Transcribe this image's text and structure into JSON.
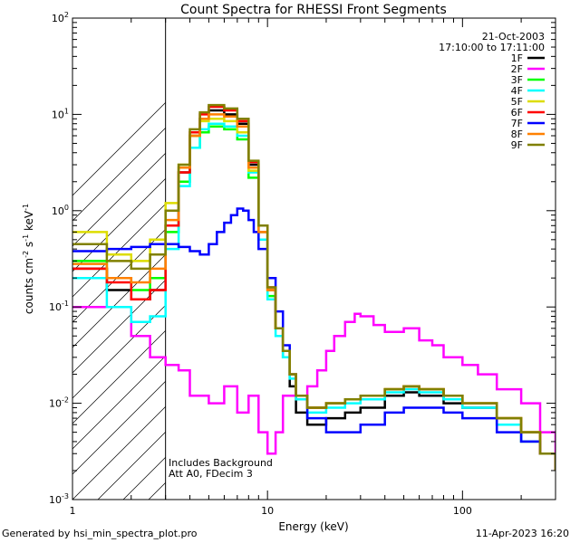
{
  "chart_data": {
    "type": "line",
    "title": "Count Spectra for RHESSI Front Segments",
    "xlabel": "Energy (keV)",
    "ylabel_parts": [
      "counts cm",
      "-2",
      " s",
      "-1",
      " keV",
      "-1"
    ],
    "xscale": "log",
    "yscale": "log",
    "xlim": [
      1,
      300
    ],
    "ylim": [
      0.001,
      100
    ],
    "x_ticks": [
      {
        "v": 1,
        "label": "1"
      },
      {
        "v": 10,
        "label": "10"
      },
      {
        "v": 100,
        "label": "100"
      }
    ],
    "y_ticks": [
      {
        "v": 0.001,
        "b": "10",
        "e": "-3"
      },
      {
        "v": 0.01,
        "b": "10",
        "e": "-2"
      },
      {
        "v": 0.1,
        "b": "10",
        "e": "-1"
      },
      {
        "v": 1,
        "b": "10",
        "e": "0"
      },
      {
        "v": 10,
        "b": "10",
        "e": "1"
      },
      {
        "v": 100,
        "b": "10",
        "e": "2"
      }
    ],
    "hatched_region_x": [
      1,
      3
    ],
    "date": "21-Oct-2003",
    "time_range": "17:10:00 to 17:11:00",
    "legend_position": "top-right",
    "annotations": [
      "Includes Background",
      "Att A0, FDecim 3"
    ],
    "series": [
      {
        "name": "1F",
        "color": "#000000",
        "x": [
          1,
          1.5,
          2,
          2.5,
          3,
          3.5,
          4,
          4.5,
          5,
          5.5,
          6,
          7,
          8,
          9,
          10,
          11,
          12,
          13,
          14,
          16,
          20,
          25,
          30,
          40,
          50,
          60,
          80,
          100,
          150,
          200,
          250,
          300
        ],
        "y": [
          0.25,
          0.15,
          0.12,
          0.15,
          0.7,
          2.5,
          6,
          9,
          11,
          11,
          10,
          8,
          3,
          0.6,
          0.15,
          0.06,
          0.03,
          0.015,
          0.008,
          0.006,
          0.007,
          0.008,
          0.009,
          0.012,
          0.013,
          0.012,
          0.01,
          0.009,
          0.006,
          0.004,
          0.003,
          0.002
        ]
      },
      {
        "name": "2F",
        "color": "#ff00ff",
        "x": [
          1,
          1.5,
          2,
          2.5,
          3,
          3.5,
          4,
          5,
          6,
          7,
          8,
          9,
          10,
          11,
          12,
          14,
          16,
          18,
          20,
          22,
          25,
          28,
          30,
          35,
          40,
          50,
          60,
          70,
          80,
          100,
          120,
          150,
          200,
          250,
          300
        ],
        "y": [
          0.1,
          0.1,
          0.05,
          0.03,
          0.025,
          0.022,
          0.012,
          0.01,
          0.015,
          0.008,
          0.012,
          0.005,
          0.003,
          0.005,
          0.012,
          0.012,
          0.015,
          0.022,
          0.035,
          0.05,
          0.07,
          0.085,
          0.08,
          0.065,
          0.055,
          0.06,
          0.045,
          0.04,
          0.03,
          0.025,
          0.02,
          0.014,
          0.01,
          0.005,
          0.003
        ]
      },
      {
        "name": "3F",
        "color": "#00ff00",
        "x": [
          1,
          1.5,
          2,
          2.5,
          3,
          3.5,
          4,
          4.5,
          5,
          5.5,
          6,
          7,
          8,
          9,
          10,
          11,
          12,
          13,
          14,
          16,
          20,
          25,
          30,
          40,
          50,
          60,
          80,
          100,
          150,
          200,
          250,
          300
        ],
        "y": [
          0.3,
          0.2,
          0.15,
          0.2,
          0.6,
          2,
          4.5,
          6.5,
          7.5,
          7.5,
          7,
          5.5,
          2.2,
          0.5,
          0.13,
          0.06,
          0.035,
          0.02,
          0.012,
          0.009,
          0.01,
          0.011,
          0.012,
          0.014,
          0.015,
          0.014,
          0.012,
          0.01,
          0.007,
          0.005,
          0.003,
          0.002
        ]
      },
      {
        "name": "4F",
        "color": "#00ffff",
        "x": [
          1,
          1.5,
          2,
          2.5,
          3,
          3.5,
          4,
          4.5,
          5,
          5.5,
          6,
          7,
          8,
          9,
          10,
          11,
          12,
          13,
          14,
          16,
          20,
          25,
          30,
          40,
          50,
          60,
          80,
          100,
          150,
          200,
          250,
          300
        ],
        "y": [
          0.2,
          0.1,
          0.07,
          0.08,
          0.4,
          1.8,
          4.5,
          7,
          8,
          8,
          7.5,
          6,
          2.5,
          0.5,
          0.12,
          0.05,
          0.03,
          0.018,
          0.011,
          0.008,
          0.009,
          0.01,
          0.011,
          0.013,
          0.014,
          0.013,
          0.011,
          0.009,
          0.006,
          0.004,
          0.003,
          0.002
        ]
      },
      {
        "name": "5F",
        "color": "#dddd00",
        "x": [
          1,
          1.5,
          2,
          2.5,
          3,
          3.5,
          4,
          4.5,
          5,
          5.5,
          6,
          7,
          8,
          9,
          10,
          11,
          12,
          13,
          14,
          16,
          20,
          25,
          30,
          40,
          50,
          60,
          80,
          100,
          150,
          200,
          250,
          300
        ],
        "y": [
          0.6,
          0.35,
          0.3,
          0.5,
          1.2,
          3,
          6,
          8.5,
          9,
          9,
          8.5,
          6.5,
          2.6,
          0.6,
          0.15,
          0.06,
          0.035,
          0.02,
          0.012,
          0.009,
          0.01,
          0.011,
          0.012,
          0.014,
          0.015,
          0.014,
          0.012,
          0.01,
          0.007,
          0.005,
          0.003,
          0.002
        ]
      },
      {
        "name": "6F",
        "color": "#ff0000",
        "x": [
          1,
          1.5,
          2,
          2.5,
          3,
          3.5,
          4,
          4.5,
          5,
          5.5,
          6,
          7,
          8,
          9,
          10,
          11,
          12,
          13,
          14,
          16,
          20,
          25,
          30,
          40,
          50,
          60,
          80,
          100,
          150,
          200,
          250,
          300
        ],
        "y": [
          0.25,
          0.18,
          0.12,
          0.15,
          0.7,
          2.5,
          6.5,
          10,
          12,
          12,
          11,
          8.5,
          3.2,
          0.7,
          0.16,
          0.06,
          0.035,
          0.02,
          0.012,
          0.009,
          0.01,
          0.011,
          0.012,
          0.014,
          0.015,
          0.014,
          0.012,
          0.01,
          0.007,
          0.005,
          0.003,
          0.002
        ]
      },
      {
        "name": "7F",
        "color": "#0000ff",
        "x": [
          1,
          1.5,
          2,
          2.5,
          3,
          3.5,
          4,
          4.5,
          5,
          5.5,
          6,
          6.5,
          7,
          7.5,
          8,
          8.5,
          9,
          10,
          11,
          12,
          13,
          14,
          16,
          20,
          25,
          30,
          40,
          50,
          60,
          80,
          100,
          150,
          200,
          250,
          300
        ],
        "y": [
          0.38,
          0.4,
          0.42,
          0.45,
          0.45,
          0.42,
          0.38,
          0.35,
          0.45,
          0.6,
          0.75,
          0.9,
          1.05,
          1.0,
          0.8,
          0.6,
          0.4,
          0.2,
          0.09,
          0.04,
          0.02,
          0.012,
          0.007,
          0.005,
          0.005,
          0.006,
          0.008,
          0.009,
          0.009,
          0.008,
          0.007,
          0.005,
          0.004,
          0.003,
          0.002
        ]
      },
      {
        "name": "8F",
        "color": "#ff8000",
        "x": [
          1,
          1.5,
          2,
          2.5,
          3,
          3.5,
          4,
          4.5,
          5,
          5.5,
          6,
          7,
          8,
          9,
          10,
          11,
          12,
          13,
          14,
          16,
          20,
          25,
          30,
          40,
          50,
          60,
          80,
          100,
          150,
          200,
          250,
          300
        ],
        "y": [
          0.28,
          0.2,
          0.18,
          0.25,
          0.8,
          2.8,
          6,
          9,
          10,
          10,
          9.5,
          7.5,
          2.8,
          0.6,
          0.15,
          0.06,
          0.035,
          0.02,
          0.012,
          0.009,
          0.01,
          0.011,
          0.012,
          0.014,
          0.015,
          0.014,
          0.012,
          0.01,
          0.007,
          0.005,
          0.003,
          0.002
        ]
      },
      {
        "name": "9F",
        "color": "#808000",
        "x": [
          1,
          1.5,
          2,
          2.5,
          3,
          3.5,
          4,
          4.5,
          5,
          5.5,
          6,
          7,
          8,
          9,
          10,
          11,
          12,
          13,
          14,
          16,
          20,
          25,
          30,
          40,
          50,
          60,
          80,
          100,
          150,
          200,
          250,
          300
        ],
        "y": [
          0.45,
          0.3,
          0.25,
          0.35,
          1.0,
          3,
          7,
          10.5,
          12.5,
          12.5,
          11.5,
          9,
          3.3,
          0.7,
          0.16,
          0.06,
          0.035,
          0.02,
          0.012,
          0.009,
          0.01,
          0.011,
          0.012,
          0.014,
          0.015,
          0.014,
          0.012,
          0.01,
          0.007,
          0.005,
          0.003,
          0.002
        ]
      }
    ]
  },
  "footer": {
    "left": "Generated by hsi_min_spectra_plot.pro",
    "right": "11-Apr-2023 16:20"
  }
}
